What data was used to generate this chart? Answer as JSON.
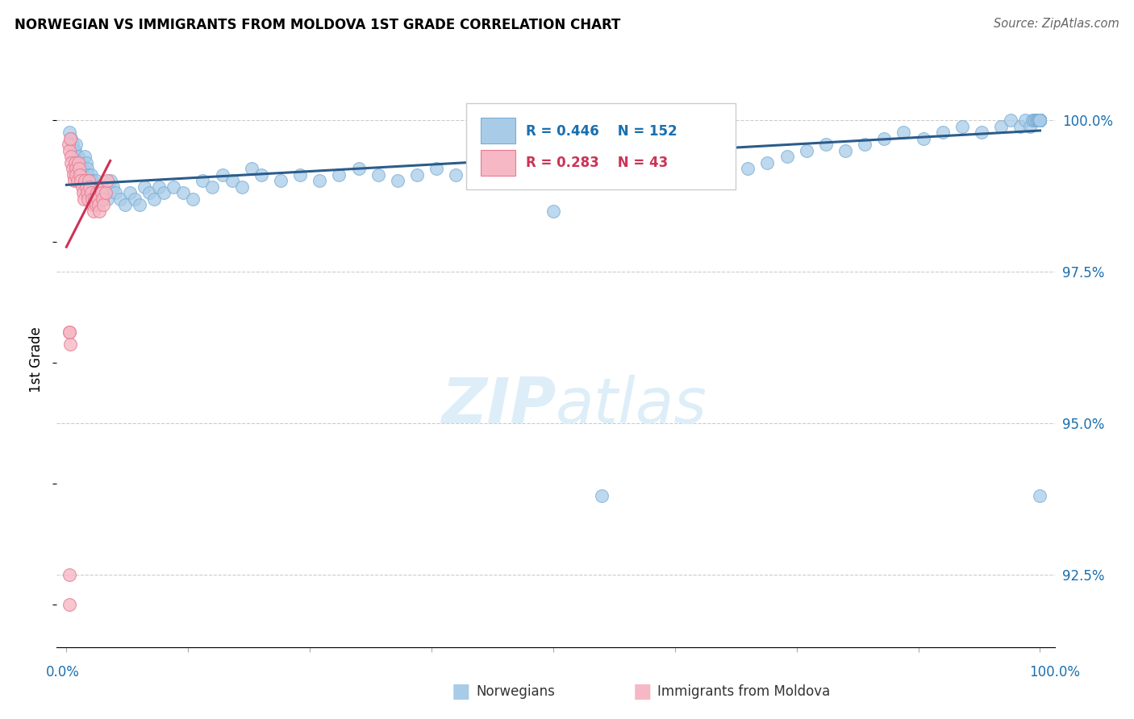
{
  "title": "NORWEGIAN VS IMMIGRANTS FROM MOLDOVA 1ST GRADE CORRELATION CHART",
  "source": "Source: ZipAtlas.com",
  "ylabel": "1st Grade",
  "legend_blue_label": "Norwegians",
  "legend_pink_label": "Immigrants from Moldova",
  "blue_R": 0.446,
  "blue_N": 152,
  "pink_R": 0.283,
  "pink_N": 43,
  "blue_color": "#a8cce8",
  "pink_color": "#f5b8c4",
  "blue_edge_color": "#7aadd4",
  "pink_edge_color": "#e87a95",
  "blue_line_color": "#2b5c8a",
  "pink_line_color": "#cc3355",
  "text_blue_color": "#1a6faf",
  "text_pink_color": "#cc3355",
  "watermark_color": "#ddeef8",
  "yticks": [
    92.5,
    95.0,
    97.5,
    100.0
  ],
  "ytick_labels": [
    "92.5%",
    "95.0%",
    "97.5%",
    "100.0%"
  ],
  "ylim_low": 91.3,
  "ylim_high": 100.8,
  "xlim_low": -1.0,
  "xlim_high": 101.5,
  "blue_x": [
    0.3,
    0.5,
    0.6,
    0.7,
    0.8,
    0.9,
    1.0,
    1.1,
    1.2,
    1.3,
    1.4,
    1.5,
    1.6,
    1.7,
    1.8,
    1.9,
    2.0,
    2.1,
    2.2,
    2.3,
    2.4,
    2.5,
    2.6,
    2.7,
    2.8,
    3.0,
    3.2,
    3.4,
    3.6,
    3.8,
    4.0,
    4.2,
    4.5,
    4.8,
    5.0,
    5.5,
    6.0,
    6.5,
    7.0,
    7.5,
    8.0,
    8.5,
    9.0,
    9.5,
    10.0,
    11.0,
    12.0,
    13.0,
    14.0,
    15.0,
    16.0,
    17.0,
    18.0,
    19.0,
    20.0,
    22.0,
    24.0,
    26.0,
    28.0,
    30.0,
    32.0,
    34.0,
    36.0,
    38.0,
    40.0,
    42.0,
    44.0,
    46.0,
    48.0,
    50.0,
    52.0,
    54.0,
    56.0,
    58.0,
    60.0,
    62.0,
    64.0,
    66.0,
    68.0,
    70.0,
    72.0,
    74.0,
    76.0,
    78.0,
    80.0,
    82.0,
    84.0,
    86.0,
    88.0,
    90.0,
    92.0,
    94.0,
    96.0,
    97.0,
    98.0,
    98.5,
    99.0,
    99.2,
    99.4,
    99.5,
    99.6,
    99.7,
    99.8,
    99.9,
    100.0,
    100.0,
    100.0,
    100.0,
    100.0,
    100.0,
    100.0,
    100.0,
    100.0,
    100.0,
    100.0,
    100.0,
    100.0,
    100.0,
    100.0,
    100.0,
    100.0,
    100.0,
    100.0,
    100.0,
    100.0,
    100.0,
    100.0,
    100.0,
    100.0,
    100.0,
    100.0,
    100.0,
    100.0,
    100.0,
    100.0,
    100.0,
    100.0,
    100.0,
    100.0,
    100.0,
    100.0,
    100.0,
    100.0,
    100.0,
    100.0,
    100.0,
    100.0,
    100.0,
    100.0,
    100.0,
    100.0,
    100.0
  ],
  "blue_y": [
    99.8,
    99.7,
    99.6,
    99.5,
    99.4,
    99.5,
    99.6,
    99.3,
    99.4,
    99.2,
    99.1,
    99.3,
    99.2,
    99.1,
    99.0,
    99.4,
    99.3,
    99.2,
    99.1,
    99.0,
    98.9,
    99.1,
    99.0,
    98.9,
    98.8,
    99.0,
    98.9,
    98.8,
    98.7,
    98.9,
    98.8,
    98.7,
    99.0,
    98.9,
    98.8,
    98.7,
    98.6,
    98.8,
    98.7,
    98.6,
    98.9,
    98.8,
    98.7,
    98.9,
    98.8,
    98.9,
    98.8,
    98.7,
    99.0,
    98.9,
    99.1,
    99.0,
    98.9,
    99.2,
    99.1,
    99.0,
    99.1,
    99.0,
    99.1,
    99.2,
    99.1,
    99.0,
    99.1,
    99.2,
    99.1,
    99.0,
    99.1,
    99.2,
    99.1,
    98.5,
    99.0,
    99.1,
    99.2,
    99.0,
    99.1,
    99.2,
    99.3,
    99.4,
    99.3,
    99.2,
    99.3,
    99.4,
    99.5,
    99.6,
    99.5,
    99.6,
    99.7,
    99.8,
    99.7,
    99.8,
    99.9,
    99.8,
    99.9,
    100.0,
    99.9,
    100.0,
    99.9,
    100.0,
    100.0,
    100.0,
    100.0,
    100.0,
    100.0,
    100.0,
    100.0,
    100.0,
    100.0,
    100.0,
    100.0,
    100.0,
    100.0,
    100.0,
    100.0,
    100.0,
    100.0,
    100.0,
    100.0,
    100.0,
    100.0,
    100.0,
    100.0,
    100.0,
    100.0,
    100.0,
    100.0,
    100.0,
    100.0,
    100.0,
    100.0,
    100.0,
    100.0,
    100.0,
    100.0,
    100.0,
    100.0,
    100.0,
    100.0,
    100.0,
    100.0,
    100.0,
    100.0,
    100.0,
    100.0,
    100.0,
    100.0,
    100.0,
    100.0,
    100.0,
    100.0,
    100.0,
    100.0,
    93.8
  ],
  "pink_x": [
    0.2,
    0.3,
    0.4,
    0.5,
    0.5,
    0.6,
    0.7,
    0.8,
    0.9,
    1.0,
    1.0,
    1.1,
    1.2,
    1.3,
    1.4,
    1.5,
    1.6,
    1.7,
    1.8,
    1.9,
    2.0,
    2.1,
    2.2,
    2.3,
    2.4,
    2.5,
    2.6,
    2.7,
    2.8,
    2.9,
    3.0,
    3.1,
    3.2,
    3.3,
    3.4,
    3.5,
    3.6,
    3.7,
    3.8,
    4.0,
    4.2,
    0.3,
    0.4
  ],
  "pink_y": [
    99.6,
    99.5,
    99.7,
    99.4,
    99.3,
    99.2,
    99.1,
    99.0,
    99.3,
    99.2,
    99.1,
    99.0,
    99.3,
    99.2,
    99.1,
    99.0,
    98.9,
    98.8,
    98.7,
    99.0,
    98.9,
    98.8,
    98.7,
    99.0,
    98.9,
    98.8,
    98.7,
    98.6,
    98.5,
    98.7,
    98.6,
    98.8,
    98.7,
    98.6,
    98.5,
    98.9,
    98.8,
    98.7,
    98.6,
    98.8,
    99.0,
    96.5,
    96.3
  ]
}
